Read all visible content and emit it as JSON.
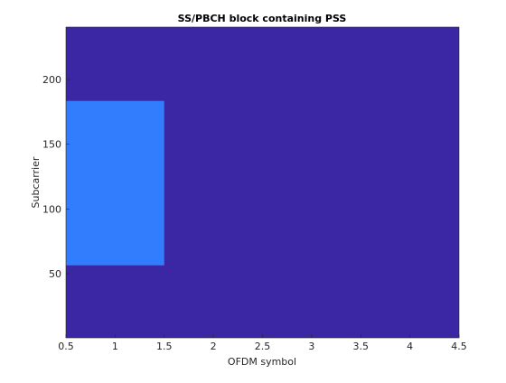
{
  "chart_data": {
    "type": "image",
    "title": "SS/PBCH block containing PSS",
    "x_label": "OFDM symbol",
    "y_label": "Subcarrier",
    "xlim": [
      0.5,
      4.5
    ],
    "xticks": [
      0.5,
      1,
      1.5,
      2,
      2.5,
      3,
      3.5,
      4,
      4.5
    ],
    "ylim": [
      0.5,
      240.5
    ],
    "yticks": [
      50,
      100,
      150,
      200
    ],
    "background_color": "#3b27a3",
    "blocks": [
      {
        "x": [
          0.5,
          1.5
        ],
        "y": [
          56.5,
          183.5
        ],
        "color": "#327dfe"
      }
    ]
  }
}
